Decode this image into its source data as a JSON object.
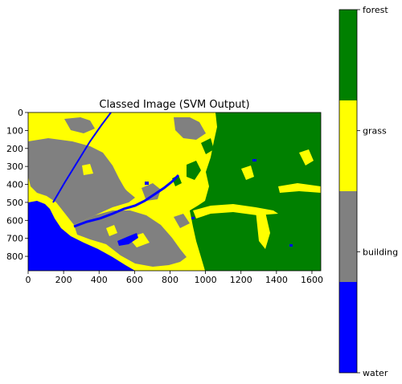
{
  "chart_data": {
    "type": "heatmap",
    "title": "Classed Image (SVM Output)",
    "xlabel": "",
    "ylabel": "",
    "xlim": [
      0,
      1650
    ],
    "ylim": [
      880,
      0
    ],
    "x_ticks": [
      0,
      200,
      400,
      600,
      800,
      1000,
      1200,
      1400,
      1600
    ],
    "y_ticks": [
      0,
      100,
      200,
      300,
      400,
      500,
      600,
      700,
      800
    ],
    "grid": false,
    "classes": [
      {
        "label": "water",
        "color": "#0000ff",
        "value": 0
      },
      {
        "label": "building",
        "color": "#808080",
        "value": 1
      },
      {
        "label": "grass",
        "color": "#ffff00",
        "value": 2
      },
      {
        "label": "forest",
        "color": "#008000",
        "value": 3
      }
    ],
    "colorbar": {
      "placement": "right",
      "tick_labels": [
        "forest",
        "grass",
        "building",
        "water"
      ]
    }
  }
}
